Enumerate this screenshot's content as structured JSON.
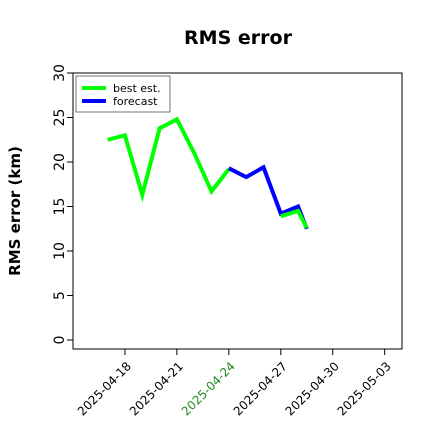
{
  "chart_data": {
    "type": "line",
    "title": "RMS error",
    "ylabel": "RMS error (km)",
    "xlabel": "",
    "ylim": [
      0,
      30
    ],
    "yticks": [
      0,
      5,
      10,
      15,
      20,
      25,
      30
    ],
    "xlim": [
      "2025-04-15",
      "2025-05-04"
    ],
    "xticks": [
      "2025-04-18",
      "2025-04-21",
      "2025-04-24",
      "2025-04-27",
      "2025-04-30",
      "2025-05-03"
    ],
    "highlight_tick": {
      "label": "2025-04-24",
      "color": "#228b22"
    },
    "grid": false,
    "legend_position": "top-left",
    "series": [
      {
        "name": "best est.",
        "color": "#00ff00",
        "points": [
          [
            "2025-04-17 00:00",
            22.5
          ],
          [
            "2025-04-18 00:00",
            23.0
          ],
          [
            "2025-04-19 00:00",
            16.3
          ],
          [
            "2025-04-20 00:00",
            23.8
          ],
          [
            "2025-04-21 00:00",
            24.8
          ],
          [
            "2025-04-22 00:00",
            21.0
          ],
          [
            "2025-04-23 00:00",
            16.7
          ],
          [
            "2025-04-24 00:00",
            19.2
          ]
        ]
      },
      {
        "name": "forecast",
        "color": "#0000ff",
        "points": [
          [
            "2025-04-24 00:00",
            19.3
          ],
          [
            "2025-04-25 00:00",
            18.3
          ],
          [
            "2025-04-26 00:00",
            19.4
          ],
          [
            "2025-04-27 00:00",
            14.2
          ],
          [
            "2025-04-28 00:00",
            15.0
          ],
          [
            "2025-04-28 12:00",
            12.5
          ]
        ]
      },
      {
        "name": "",
        "color": "#00ff00",
        "points": [
          [
            "2025-04-27 00:00",
            13.9
          ],
          [
            "2025-04-28 00:00",
            14.5
          ],
          [
            "2025-04-28 12:00",
            12.6
          ]
        ]
      }
    ]
  }
}
